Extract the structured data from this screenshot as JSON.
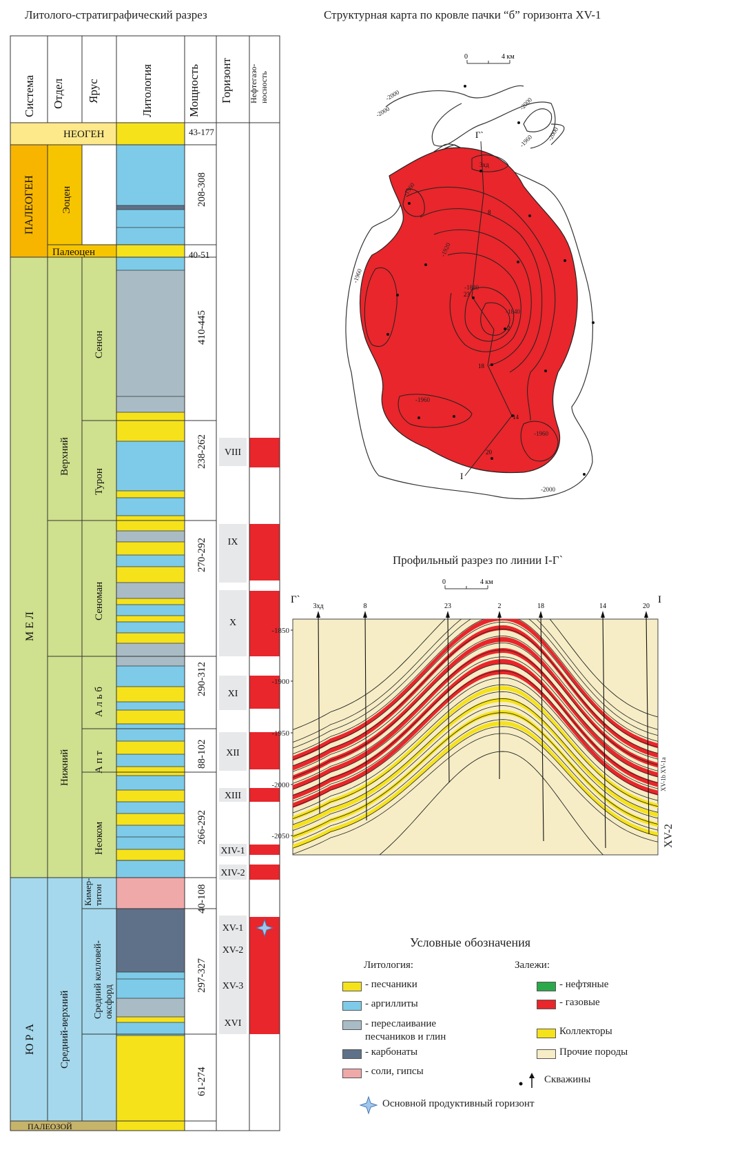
{
  "titles": {
    "strat": "Литолого-стратиграфический разрез",
    "map": "Структурная карта по кровле пачки “б” горизонта XV-1",
    "profile": "Профильный разрез по линии I-Г`",
    "legend": "Условные обозначения"
  },
  "headers": {
    "system": "Система",
    "series": "Отдел",
    "stage": "Ярус",
    "lith": "Литология",
    "thick": "Мощность",
    "horizon": "Горизонт",
    "oilgas": "Нефтегазо-\nносность"
  },
  "units": {
    "neogen": "НЕОГЕН",
    "paleogen": "ПАЛЕОГЕН",
    "eocene": "Эоцен",
    "paleocene": "Палеоцен",
    "mel": "М Е Л",
    "upper": "Верхний",
    "lower": "Нижний",
    "senon": "Сенон",
    "turon": "Турон",
    "cenoman": "Сеноман",
    "alb": "А л ь б",
    "apt": "А п т",
    "neocom": "Неоком",
    "jura": "Ю Р А",
    "midupper": "Средний-верхний",
    "kimer": "Кимер-\nтитон",
    "kellovey": "Средний келловей-\nоксфорд",
    "paleozoic": "ПАЛЕОЗОЙ"
  },
  "thickness": [
    "43-177",
    "208-308",
    "40-51",
    "410-445",
    "238-262",
    "270-292",
    "290-312",
    "88-102",
    "266-292",
    "40-108",
    "297-327",
    "61-274"
  ],
  "horizons": [
    "VIII",
    "IX",
    "X",
    "XI",
    "XII",
    "XIII",
    "XIV-1",
    "XIV-2",
    "XV-1",
    "XV-2",
    "XV-3",
    "XVI"
  ],
  "map": {
    "scale": [
      "0",
      "4 км"
    ],
    "contours": [
      "-2000",
      "-2000",
      "-1960",
      "-2000",
      "-1960",
      "-1920",
      "-1960",
      "-1880",
      "-1840",
      "-1960",
      "-1960",
      "-2000"
    ],
    "wells": [
      "3хд",
      "8",
      "23",
      "2",
      "18",
      "14",
      "20"
    ],
    "line_ends": [
      "Г`",
      "I"
    ]
  },
  "profile": {
    "scale": [
      "0",
      "4 км"
    ],
    "ends": [
      "Г`",
      "I"
    ],
    "wells": [
      "3хд",
      "8",
      "23",
      "2",
      "18",
      "14",
      "20"
    ],
    "yticks": [
      "-1850",
      "-1900",
      "-1950",
      "-2000",
      "-2050"
    ],
    "side_labels": [
      "XV-1a",
      "XV-1b",
      "XV-2"
    ]
  },
  "legend": {
    "lith_title": "Литология:",
    "deposit_title": "Залежи:",
    "sand": "- песчаники",
    "arg": "- аргиллиты",
    "inter": "- переслаивание\nпесчаников и глин",
    "carb": "- карбонаты",
    "salt": "- соли, гипсы",
    "oil": "- нефтяные",
    "gas": "- газовые",
    "coll": "Коллекторы",
    "other": "Прочие породы",
    "wells": "Скважины",
    "main": "Основной продуктивный горизонт"
  },
  "colors": {
    "sand": "#f5e21b",
    "arg": "#7dcbe8",
    "inter": "#a9bcc6",
    "carb": "#5f7189",
    "salt": "#efa9a9",
    "gas": "#e8262b",
    "oil": "#2aa84a",
    "bg": "#f6edc6",
    "neogen": "#fde98a",
    "paleogen": "#f7b500",
    "mel": "#cfe08e",
    "jura": "#a5d8ec"
  }
}
